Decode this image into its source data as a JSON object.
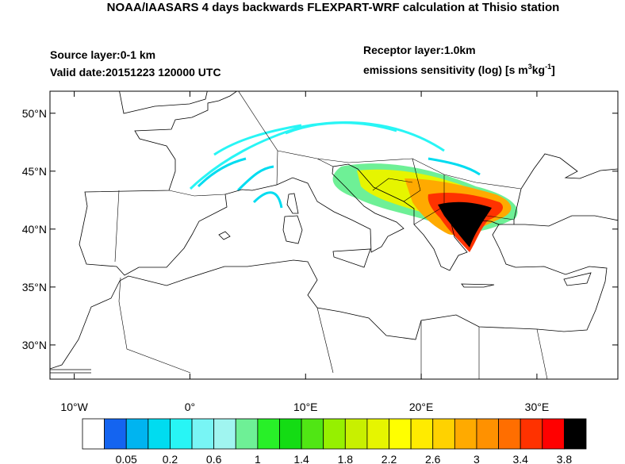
{
  "header": {
    "title": "NOAA/IAASARS 4 days backwards FLEXPART-WRF calculation at Thisio station",
    "source_layer": "Source layer:0-1 km",
    "valid_date": "Valid date:20151223 120000 UTC",
    "receptor_layer": "Receptor layer:1.0km",
    "units_parts": [
      "emissions sensitivity (log) [s m",
      "3",
      "kg",
      "-1",
      "]"
    ]
  },
  "map": {
    "lon_range": [
      -12.1,
      37
    ],
    "lat_range": [
      27.05,
      51.9
    ],
    "lat_ticks": [
      {
        "value": 50,
        "label": "50°N"
      },
      {
        "value": 45,
        "label": "45°N"
      },
      {
        "value": 40,
        "label": "40°N"
      },
      {
        "value": 35,
        "label": "35°N"
      },
      {
        "value": 30,
        "label": "30°N"
      }
    ],
    "lon_ticks": [
      {
        "value": -10,
        "label": "10°W"
      },
      {
        "value": 0,
        "label": "0°"
      },
      {
        "value": 10,
        "label": "10°E"
      },
      {
        "value": 20,
        "label": "20°E"
      },
      {
        "value": 30,
        "label": "30°E"
      }
    ]
  },
  "colorbar": {
    "colors": [
      "#ffffff",
      "#1464f0",
      "#00b4f0",
      "#00dcf0",
      "#28f5f5",
      "#78f5f5",
      "#a0f5f0",
      "#6ef096",
      "#28f028",
      "#14dc14",
      "#50e614",
      "#96f000",
      "#c8f000",
      "#e6f500",
      "#ffff00",
      "#ffeb00",
      "#ffd200",
      "#ffaa00",
      "#ff9100",
      "#ff6e00",
      "#ff3200",
      "#ff0000",
      "#000000"
    ],
    "labels": [
      "0.05",
      "0.2",
      "0.6",
      "1",
      "1.4",
      "1.8",
      "2.2",
      "2.6",
      "3",
      "3.4",
      "3.8"
    ]
  }
}
